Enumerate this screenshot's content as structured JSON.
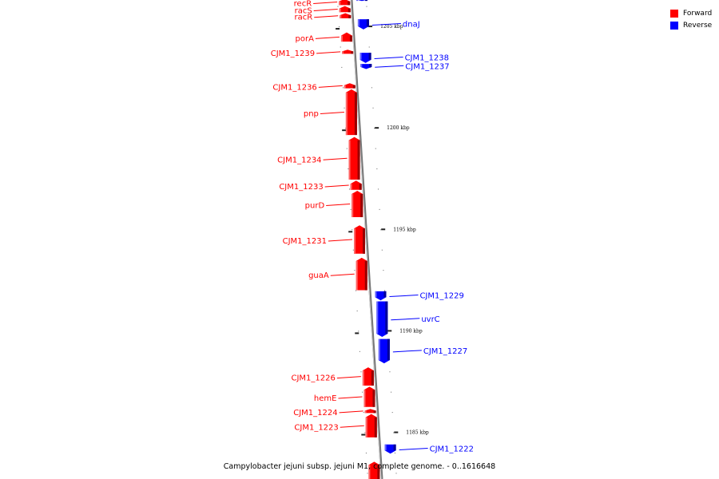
{
  "caption": "Campylobacter jejuni subsp. jejuni M1, complete genome. - 0..1616648",
  "legend": {
    "items": [
      {
        "label": "Forward",
        "color": "#ff0000"
      },
      {
        "label": "Reverse",
        "color": "#0000ff"
      }
    ]
  },
  "colors": {
    "forward": "#ff0000",
    "reverse": "#0000ff",
    "backbone": "#999999"
  },
  "axis": {
    "unit": "kbp",
    "kbp_at_top": 1206.3,
    "kbp_at_bottom": 1182.7,
    "ticks": [
      {
        "value": 1205,
        "label": "1205 kbp"
      },
      {
        "value": 1200,
        "label": "1200 kbp"
      },
      {
        "value": 1195,
        "label": "1195 kbp"
      },
      {
        "value": 1190,
        "label": "1190 kbp"
      },
      {
        "value": 1185,
        "label": "1185 kbp"
      }
    ]
  },
  "genes": [
    {
      "name": "recR",
      "strand": "forward",
      "start_kbp": 1206.35,
      "end_kbp": 1206.05
    },
    {
      "name": "racS",
      "strand": "forward",
      "start_kbp": 1206.0,
      "end_kbp": 1205.7
    },
    {
      "name": "racR",
      "strand": "forward",
      "start_kbp": 1205.65,
      "end_kbp": 1205.4
    },
    {
      "name": "",
      "strand": "reverse",
      "start_kbp": 1206.35,
      "end_kbp": 1206.25
    },
    {
      "name": "dnaJ",
      "strand": "reverse",
      "start_kbp": 1205.35,
      "end_kbp": 1204.85
    },
    {
      "name": "porA",
      "strand": "forward",
      "start_kbp": 1204.7,
      "end_kbp": 1204.25
    },
    {
      "name": "CJM1_1239",
      "strand": "forward",
      "start_kbp": 1203.85,
      "end_kbp": 1203.65
    },
    {
      "name": "CJM1_1238",
      "strand": "reverse",
      "start_kbp": 1203.7,
      "end_kbp": 1203.2
    },
    {
      "name": "CJM1_1237",
      "strand": "reverse",
      "start_kbp": 1203.15,
      "end_kbp": 1202.9
    },
    {
      "name": "CJM1_1236",
      "strand": "forward",
      "start_kbp": 1202.2,
      "end_kbp": 1201.95
    },
    {
      "name": "pnp",
      "strand": "forward",
      "start_kbp": 1201.9,
      "end_kbp": 1199.65
    },
    {
      "name": "CJM1_1234",
      "strand": "forward",
      "start_kbp": 1199.55,
      "end_kbp": 1197.45
    },
    {
      "name": "CJM1_1233",
      "strand": "forward",
      "start_kbp": 1197.4,
      "end_kbp": 1196.95
    },
    {
      "name": "purD",
      "strand": "forward",
      "start_kbp": 1196.9,
      "end_kbp": 1195.6
    },
    {
      "name": "CJM1_1231",
      "strand": "forward",
      "start_kbp": 1195.2,
      "end_kbp": 1193.8
    },
    {
      "name": "guaA",
      "strand": "forward",
      "start_kbp": 1193.6,
      "end_kbp": 1192.0
    },
    {
      "name": "CJM1_1229",
      "strand": "reverse",
      "start_kbp": 1191.95,
      "end_kbp": 1191.5
    },
    {
      "name": "uvrC",
      "strand": "reverse",
      "start_kbp": 1191.45,
      "end_kbp": 1189.7
    },
    {
      "name": "CJM1_1227",
      "strand": "reverse",
      "start_kbp": 1189.6,
      "end_kbp": 1188.4
    },
    {
      "name": "CJM1_1226",
      "strand": "forward",
      "start_kbp": 1188.2,
      "end_kbp": 1187.3
    },
    {
      "name": "hemE",
      "strand": "forward",
      "start_kbp": 1187.25,
      "end_kbp": 1186.25
    },
    {
      "name": "CJM1_1224",
      "strand": "forward",
      "start_kbp": 1186.15,
      "end_kbp": 1185.95
    },
    {
      "name": "CJM1_1223",
      "strand": "forward",
      "start_kbp": 1185.9,
      "end_kbp": 1184.75
    },
    {
      "name": "CJM1_1222",
      "strand": "reverse",
      "start_kbp": 1184.4,
      "end_kbp": 1183.95
    },
    {
      "name": "",
      "strand": "forward",
      "start_kbp": 1183.55,
      "end_kbp": 1182.6
    }
  ]
}
